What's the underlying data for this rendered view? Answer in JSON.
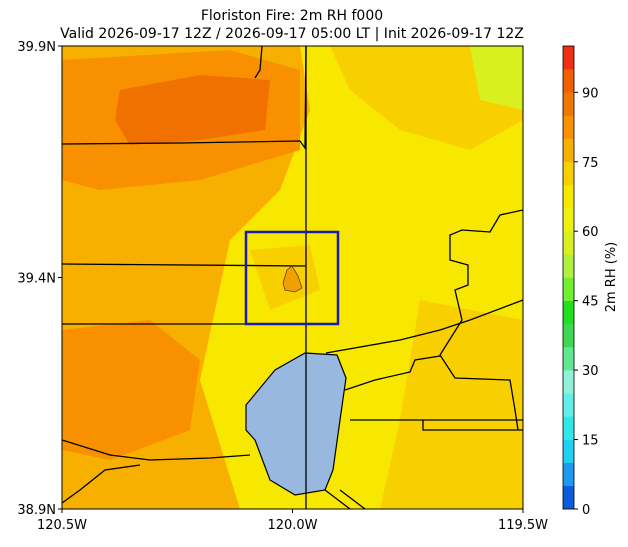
{
  "chart_data": {
    "type": "map",
    "title": "Floriston Fire: 2m RH f000",
    "subtitle": "Valid 2026-09-17 12Z / 2026-09-17 05:00 LT | Init 2026-09-17 12Z",
    "xlim": [
      -120.5,
      -119.5
    ],
    "xticks": [
      {
        "value": -120.5,
        "label": "120.5W"
      },
      {
        "value": -120.0,
        "label": "120.0W"
      },
      {
        "value": -119.5,
        "label": "119.5W"
      }
    ],
    "ylim": [
      38.9,
      39.9
    ],
    "yticks": [
      {
        "value": 38.9,
        "label": "38.9N"
      },
      {
        "value": 39.4,
        "label": "39.4N"
      },
      {
        "value": 39.9,
        "label": "39.9N"
      }
    ],
    "colorbar": {
      "label": "2m RH (%)",
      "lim": [
        0,
        100
      ],
      "ticks": [
        0,
        15,
        30,
        45,
        60,
        75,
        90
      ],
      "colors": [
        "#0a5cdc",
        "#1a9af0",
        "#20d0f0",
        "#30e8e8",
        "#60f0e8",
        "#90f0d8",
        "#60e890",
        "#40d850",
        "#20e020",
        "#70f030",
        "#b0f040",
        "#d8f020",
        "#f0f010",
        "#f8e800",
        "#f8d000",
        "#f8b000",
        "#f89000",
        "#f07800",
        "#f06000",
        "#f03010"
      ]
    }
  }
}
